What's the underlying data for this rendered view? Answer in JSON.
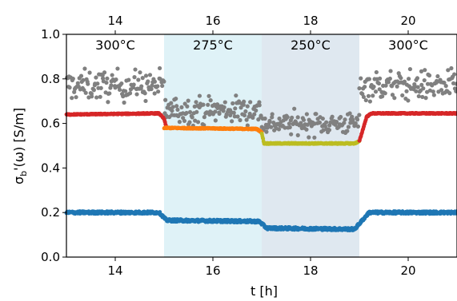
{
  "chart_data": {
    "type": "scatter",
    "xlabel": "t [h]",
    "ylabel": "σ_b'(ω) [S/m]",
    "ylabel_main": "σ",
    "ylabel_sub": "b",
    "ylabel_rest": "'(ω) [S/m]",
    "xlim": [
      13,
      21
    ],
    "ylim": [
      0.0,
      1.0
    ],
    "xticks": [
      14,
      16,
      18,
      20
    ],
    "xtick_labels": [
      "14",
      "16",
      "18",
      "20"
    ],
    "top_xticks": [
      14,
      16,
      18,
      20
    ],
    "top_xtick_labels": [
      "14",
      "16",
      "18",
      "20"
    ],
    "yticks": [
      0.0,
      0.2,
      0.4,
      0.6,
      0.8,
      1.0
    ],
    "ytick_labels": [
      "0.0",
      "0.2",
      "0.4",
      "0.6",
      "0.8",
      "1.0"
    ],
    "grid": false,
    "temperature_bands": [
      {
        "x0": 13,
        "x1": 15,
        "label": "300°C",
        "shade": "none"
      },
      {
        "x0": 15,
        "x1": 17,
        "label": "275°C",
        "shade": "#dff2f7"
      },
      {
        "x0": 17,
        "x1": 19,
        "label": "250°C",
        "shade": "#dfe8f0"
      },
      {
        "x0": 19,
        "x1": 21,
        "label": "300°C",
        "shade": "none"
      }
    ],
    "series": [
      {
        "color": "#808080",
        "style": "scatter",
        "segments": [
          {
            "x0": 13.0,
            "x1": 15.0,
            "mean": 0.77,
            "spread": 0.06
          },
          {
            "x0": 15.0,
            "x1": 17.0,
            "mean": 0.66,
            "spread": 0.055
          },
          {
            "x0": 17.0,
            "x1": 19.0,
            "mean": 0.6,
            "spread": 0.045
          },
          {
            "x0": 19.0,
            "x1": 21.0,
            "mean": 0.77,
            "spread": 0.06
          }
        ]
      },
      {
        "color": "#d62728",
        "style": "dense-points",
        "points": [
          [
            13.0,
            0.64
          ],
          [
            14.9,
            0.645
          ],
          [
            15.0,
            0.62
          ],
          [
            15.05,
            0.58
          ]
        ]
      },
      {
        "color": "#ff7f0e",
        "style": "dense-points",
        "points": [
          [
            15.0,
            0.58
          ],
          [
            16.9,
            0.575
          ],
          [
            17.0,
            0.56
          ]
        ]
      },
      {
        "color": "#bcbd22",
        "style": "dense-points",
        "points": [
          [
            17.0,
            0.555
          ],
          [
            17.05,
            0.51
          ],
          [
            18.9,
            0.51
          ],
          [
            19.0,
            0.52
          ]
        ]
      },
      {
        "color": "#d62728",
        "style": "dense-points",
        "points": [
          [
            19.0,
            0.52
          ],
          [
            19.15,
            0.63
          ],
          [
            19.25,
            0.645
          ],
          [
            21.0,
            0.645
          ]
        ]
      },
      {
        "color": "#1f77b4",
        "style": "dense-points",
        "points": [
          [
            13.0,
            0.2
          ],
          [
            14.9,
            0.2
          ],
          [
            15.05,
            0.165
          ],
          [
            16.95,
            0.16
          ],
          [
            17.1,
            0.13
          ],
          [
            18.9,
            0.125
          ],
          [
            19.2,
            0.2
          ],
          [
            21.0,
            0.2
          ]
        ]
      }
    ]
  }
}
